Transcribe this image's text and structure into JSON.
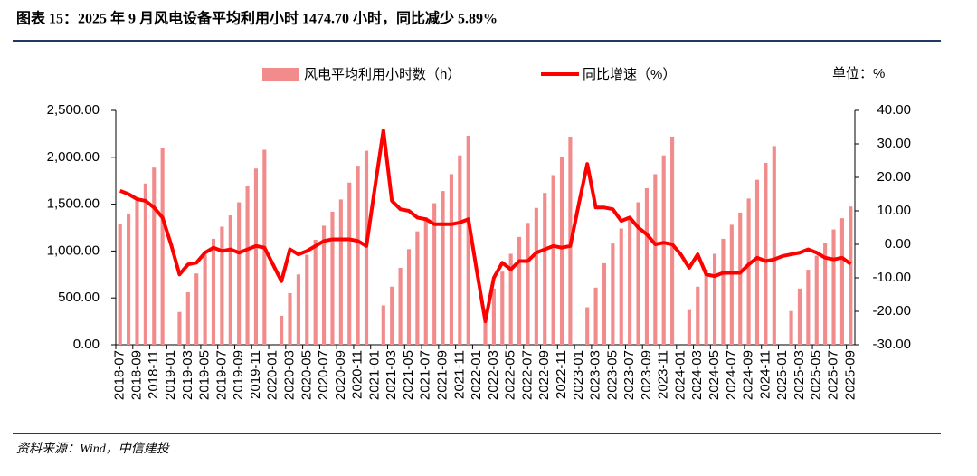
{
  "title": "图表 15：2025 年 9 月风电设备平均利用小时 1474.70 小时，同比减少 5.89%",
  "source": "资料来源：Wind，中信建投",
  "chart_data": {
    "type": "bar-line",
    "unit_note": "单位：%",
    "categories": [
      "2018-07",
      null,
      "2018-09",
      null,
      "2018-11",
      null,
      "2019-01",
      null,
      "2019-03",
      null,
      "2019-05",
      null,
      "2019-07",
      null,
      "2019-09",
      null,
      "2019-11",
      null,
      "2020-01",
      null,
      "2020-03",
      null,
      "2020-05",
      null,
      "2020-07",
      null,
      "2020-09",
      null,
      "2020-11",
      null,
      "2021-01",
      null,
      "2021-03",
      null,
      "2021-05",
      null,
      "2021-07",
      null,
      "2021-09",
      null,
      "2021-11",
      null,
      "2022-01",
      null,
      "2022-03",
      null,
      "2022-05",
      null,
      "2022-07",
      null,
      "2022-09",
      null,
      "2022-11",
      null,
      "2023-01",
      null,
      "2023-03",
      null,
      "2023-05",
      null,
      "2023-07",
      null,
      "2023-09",
      null,
      "2023-11",
      null,
      "2024-01",
      null,
      "2024-03",
      null,
      "2024-05",
      null,
      "2024-07",
      null,
      "2024-09",
      null,
      "2024-11",
      null,
      "2025-01",
      null,
      "2025-03",
      null,
      "2025-05",
      null,
      "2025-07",
      null,
      "2025-09"
    ],
    "series": [
      {
        "name": "风电平均利用小时数（h）",
        "type": "bar",
        "color": "#f28b8b",
        "axis": "y",
        "values": [
          1290,
          1400,
          1550,
          1720,
          1890,
          2095,
          null,
          350,
          560,
          760,
          960,
          1130,
          1260,
          1380,
          1520,
          1690,
          1880,
          2080,
          null,
          310,
          550,
          750,
          960,
          1120,
          1270,
          1420,
          1550,
          1730,
          1910,
          2070,
          null,
          420,
          620,
          820,
          1020,
          1210,
          1360,
          1510,
          1640,
          1820,
          2020,
          2230,
          null,
          370,
          600,
          780,
          970,
          1150,
          1300,
          1460,
          1620,
          1810,
          2000,
          2220,
          null,
          400,
          610,
          870,
          1080,
          1240,
          1370,
          1520,
          1670,
          1820,
          2020,
          2220,
          null,
          370,
          620,
          800,
          970,
          1130,
          1280,
          1410,
          1560,
          1760,
          1940,
          2120,
          null,
          360,
          600,
          800,
          950,
          1090,
          1230,
          1350,
          1474.7
        ]
      },
      {
        "name": "同比增速（%）",
        "type": "line",
        "color": "#ff0000",
        "axis": "y2",
        "values": [
          16,
          15,
          13.5,
          13,
          11,
          8,
          0,
          -9,
          -6,
          -5.5,
          -2.5,
          -1,
          -2,
          -1.5,
          -2.5,
          -1.5,
          -0.5,
          -1,
          -6,
          -11,
          -1.5,
          -3,
          -2,
          -0.5,
          1,
          1.5,
          1.5,
          1.5,
          1,
          -0.5,
          17,
          34,
          13,
          10.5,
          10,
          8,
          7.5,
          6,
          6,
          6,
          6.5,
          7.5,
          -8,
          -23,
          -10,
          -5.5,
          -7.5,
          -5,
          -5,
          -2.5,
          -1.5,
          -0.5,
          -1,
          -0.5,
          12,
          24,
          11,
          11,
          10.5,
          7,
          8,
          5,
          3,
          0,
          0.5,
          0,
          -3,
          -7,
          -3,
          -9,
          -9.5,
          -8.5,
          -8.5,
          -8.5,
          -6,
          -4,
          -5,
          -4.5,
          -3.5,
          -3,
          -2.5,
          -1.5,
          -2.5,
          -4,
          -4.5,
          -4,
          -5.89
        ]
      }
    ],
    "ylim": [
      0,
      2500
    ],
    "yticks": [
      {
        "value": 0,
        "label": "0.00"
      },
      {
        "value": 500,
        "label": "500.00"
      },
      {
        "value": 1000,
        "label": "1,000.00"
      },
      {
        "value": 1500,
        "label": "1,500.00"
      },
      {
        "value": 2000,
        "label": "2,000.00"
      },
      {
        "value": 2500,
        "label": "2,500.00"
      }
    ],
    "y2lim": [
      -30,
      40
    ],
    "y2ticks": [
      {
        "value": -30,
        "label": "-30.00"
      },
      {
        "value": -20,
        "label": "-20.00"
      },
      {
        "value": -10,
        "label": "-10.00"
      },
      {
        "value": 0,
        "label": "0.00"
      },
      {
        "value": 10,
        "label": "10.00"
      },
      {
        "value": 20,
        "label": "20.00"
      },
      {
        "value": 30,
        "label": "30.00"
      },
      {
        "value": 40,
        "label": "40.00"
      }
    ],
    "legend": "top"
  }
}
